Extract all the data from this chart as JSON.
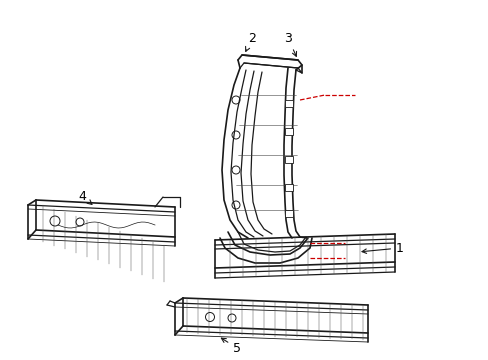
{
  "bg_color": "#ffffff",
  "line_color": "#1a1a1a",
  "red_dash_color": "#cc0000",
  "label_color": "#000000",
  "fig_width": 4.89,
  "fig_height": 3.6,
  "dpi": 100
}
